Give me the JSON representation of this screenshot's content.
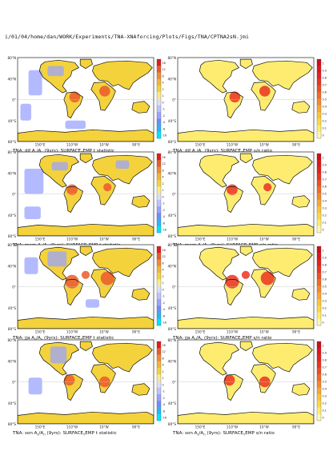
{
  "header_path": "i/01/04/home/dan/WORK/Experiments/TNA-XNAforcing/Plots/Figs/TNA/CPTNA2sN.jmi",
  "colors": {
    "land": "#fdf0b0",
    "ocean": "#ffffff",
    "border": "#c0c0c0",
    "coast": "#111111",
    "tstat": [
      "#00e5ff",
      "#29b6f6",
      "#6e8dff",
      "#9aa3ff",
      "#bcc4ff",
      "#dde0f5",
      "#f6ec8a",
      "#f4d23c",
      "#f2b43a",
      "#ee8b34",
      "#ea5b2c",
      "#e31a1c"
    ],
    "ratio": [
      "#fff7b3",
      "#fdec70",
      "#fcd843",
      "#fbc33b",
      "#f9a734",
      "#f6892d",
      "#f36a26",
      "#ef4e23",
      "#ea3421",
      "#e51f1e",
      "#df141c",
      "#d10a18"
    ]
  },
  "chart_data": [
    {
      "type": "heatmap",
      "title": "TNA: djf A_s/A_n (9yrs): SURFACE_TEMP t statistic",
      "title_main": "TNA: djf A",
      "title_rest": "/A",
      "title_tail": " (9yrs): SURFACE",
      "title_end": "EMP t statistic",
      "season": "djf",
      "statistic": "t statistic",
      "ylabels": [
        "80°N",
        "40°N",
        "0°",
        "40°S",
        "80°S"
      ],
      "xlabels": [
        "150°E",
        "110°W",
        "10°W",
        "90°E"
      ],
      "colorbar_ticks": [
        "16",
        "12",
        "8",
        "4",
        "2",
        "1",
        "0",
        "-1",
        "-2",
        "-4",
        "-8",
        "-16"
      ],
      "colorbar_range": [
        -16,
        16
      ]
    },
    {
      "type": "heatmap",
      "title": "TNA: djf A_s/A_n (9yrs): SURFACE_TEMP s/n ratio",
      "title_main": "TNA: djf A",
      "title_rest": "/A",
      "title_tail": " (9yrs): SURFACE",
      "title_end": "EMP s/n ratio",
      "season": "djf",
      "statistic": "s/n ratio",
      "ylabels": [
        "80°N",
        "40°N",
        "0°",
        "40°S",
        "80°S"
      ],
      "xlabels": [
        "150°E",
        "110°W",
        "10°W",
        "90°E"
      ],
      "colorbar_ticks": [
        "1",
        "0.9",
        "0.8",
        "0.7",
        "0.6",
        "0.5",
        "0.4",
        "0.3",
        "0.2",
        "0.1",
        "0"
      ],
      "colorbar_range": [
        0,
        1
      ]
    },
    {
      "type": "heatmap",
      "title": "TNA: mam A_s/A_n (9yrs): SURFACE_TEMP t statistic",
      "title_main": "TNA: mam A",
      "title_rest": "/A",
      "title_tail": " (9yrs): SURFACE",
      "title_end": "EMP t statistic",
      "season": "mam",
      "statistic": "t statistic",
      "ylabels": [
        "80°N",
        "40°N",
        "0°",
        "40°S",
        "80°S"
      ],
      "xlabels": [
        "150°E",
        "110°W",
        "10°W",
        "90°E"
      ],
      "colorbar_ticks": [
        "16",
        "12",
        "8",
        "4",
        "2",
        "1",
        "0",
        "-1",
        "-2",
        "-4",
        "-8",
        "-16"
      ],
      "colorbar_range": [
        -16,
        16
      ]
    },
    {
      "type": "heatmap",
      "title": "TNA: mam A_s/A_n (9yrs): SURFACE_TEMP s/n ratio",
      "title_main": "TNA: mam A",
      "title_rest": "/A",
      "title_tail": " (9yrs): SURFACE",
      "title_end": "EMP s/n ratio",
      "season": "mam",
      "statistic": "s/n ratio",
      "ylabels": [
        "80°N",
        "40°N",
        "0°",
        "40°S",
        "80°S"
      ],
      "xlabels": [
        "150°E",
        "110°W",
        "10°W",
        "90°E"
      ],
      "colorbar_ticks": [
        "1",
        "0.9",
        "0.8",
        "0.7",
        "0.6",
        "0.5",
        "0.4",
        "0.3",
        "0.2",
        "0.1",
        "0"
      ],
      "colorbar_range": [
        0,
        1
      ]
    },
    {
      "type": "heatmap",
      "title": "TNA: jja A_s/A_n (9yrs): SURFACE_TEMP t statistic",
      "title_main": "TNA: jja A",
      "title_rest": "/A",
      "title_tail": " (9yrs): SURFACE",
      "title_end": "EMP t statistic",
      "season": "jja",
      "statistic": "t statistic",
      "ylabels": [
        "80°N",
        "40°N",
        "0°",
        "40°S",
        "80°S"
      ],
      "xlabels": [
        "150°E",
        "110°W",
        "10°W",
        "90°E"
      ],
      "colorbar_ticks": [
        "16",
        "12",
        "8",
        "4",
        "2",
        "1",
        "0",
        "-1",
        "-2",
        "-4",
        "-8",
        "-16"
      ],
      "colorbar_range": [
        -16,
        16
      ]
    },
    {
      "type": "heatmap",
      "title": "TNA: jja A_s/A_n (9yrs): SURFACE_TEMP s/n ratio",
      "title_main": "TNA: jja A",
      "title_rest": "/A",
      "title_tail": " (9yrs): SURFACE",
      "title_end": "EMP s/n ratio",
      "season": "jja",
      "statistic": "s/n ratio",
      "ylabels": [
        "80°N",
        "40°N",
        "0°",
        "40°S",
        "80°S"
      ],
      "xlabels": [
        "150°E",
        "110°W",
        "10°W",
        "90°E"
      ],
      "colorbar_ticks": [
        "1",
        "0.9",
        "0.8",
        "0.7",
        "0.6",
        "0.5",
        "0.4",
        "0.3",
        "0.2",
        "0.1",
        "0"
      ],
      "colorbar_range": [
        0,
        1
      ]
    },
    {
      "type": "heatmap",
      "title": "TNA: son A_s/A_n (9yrs): SURFACE_TEMP t statistic",
      "title_main": "TNA: son A",
      "title_rest": "/A",
      "title_tail": " (9yrs): SURFACE",
      "title_end": "EMP t statistic",
      "season": "son",
      "statistic": "t statistic",
      "ylabels": [
        "80°N",
        "40°N",
        "0°",
        "40°S",
        "80°S"
      ],
      "xlabels": [
        "150°E",
        "110°W",
        "10°W",
        "90°E"
      ],
      "colorbar_ticks": [
        "16",
        "12",
        "8",
        "4",
        "2",
        "1",
        "0",
        "-1",
        "-2",
        "-4",
        "-8",
        "-16"
      ],
      "colorbar_range": [
        -16,
        16
      ]
    },
    {
      "type": "heatmap",
      "title": "TNA: son A_s/A_n (9yrs): SURFACE_TEMP s/n ratio",
      "title_main": "TNA: son A",
      "title_rest": "/A",
      "title_tail": " (9yrs): SURFACE",
      "title_end": "EMP s/n ratio",
      "season": "son",
      "statistic": "s/n ratio",
      "ylabels": [
        "80°N",
        "40°N",
        "0°",
        "40°S",
        "80°S"
      ],
      "xlabels": [
        "150°E",
        "110°W",
        "10°W",
        "90°E"
      ],
      "colorbar_ticks": [
        "1",
        "0.9",
        "0.8",
        "0.7",
        "0.6",
        "0.5",
        "0.4",
        "0.3",
        "0.2",
        "0.1",
        "0"
      ],
      "colorbar_range": [
        0,
        1
      ]
    }
  ]
}
